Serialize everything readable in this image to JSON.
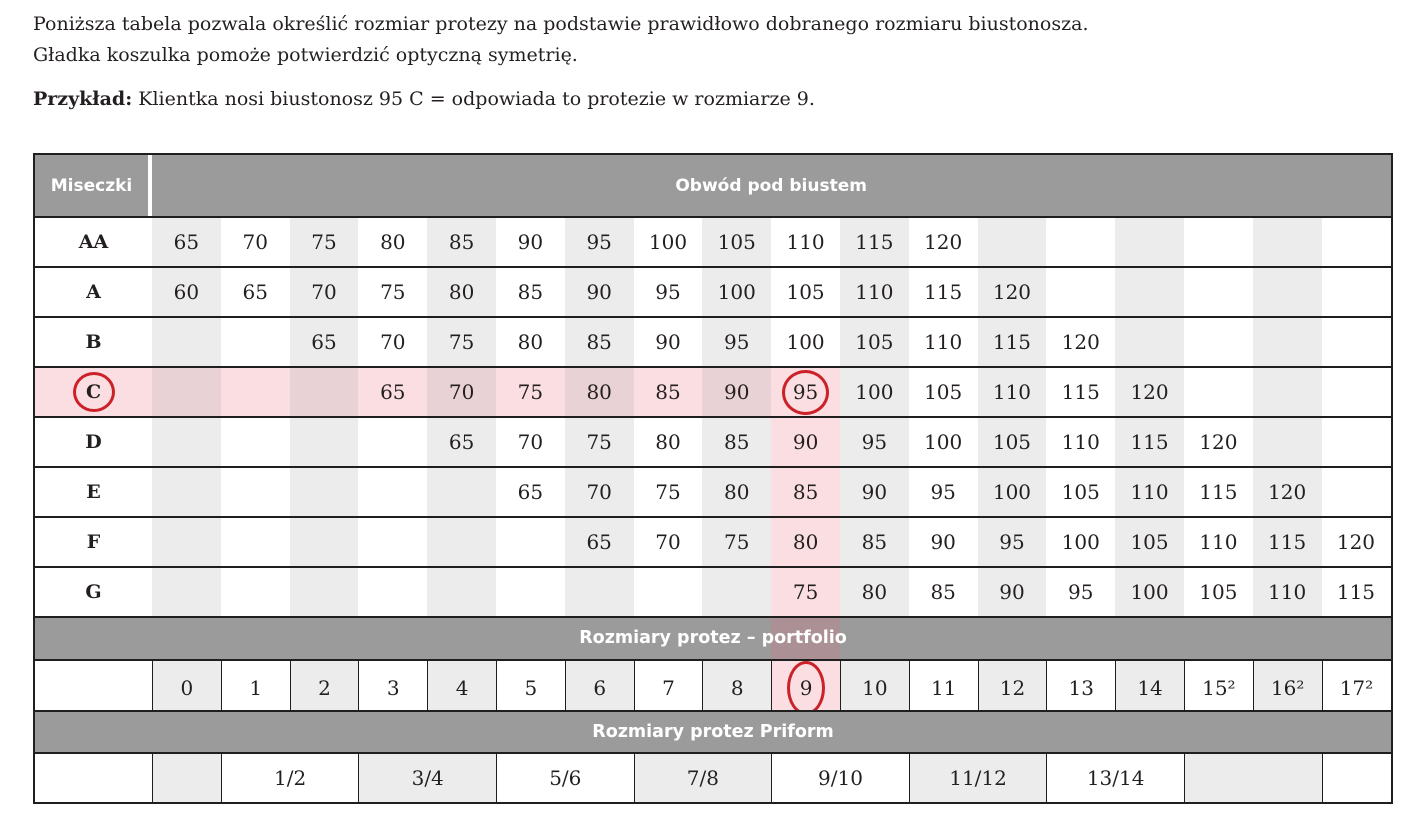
{
  "page": {
    "intro_line1": "Poniższa tabela pozwala określić rozmiar protezy na podstawie prawidłowo dobranego rozmiaru biustonosza.",
    "intro_line2": "Gładka koszulka pomoże potwierdzić optyczną symetrię.",
    "example_label": "Przykład:",
    "example_text": " Klientka nosi biustonosz 95 C = odpowiada to protezie w rozmiarze 9."
  },
  "table": {
    "num_columns": 18,
    "highlight_column_index": 9,
    "header": {
      "cups_label": "Miseczki",
      "band_label": "Obwód pod biustem"
    },
    "cup_rows": [
      {
        "label": "AA",
        "cells": [
          "65",
          "70",
          "75",
          "80",
          "85",
          "90",
          "95",
          "100",
          "105",
          "110",
          "115",
          "120",
          "",
          "",
          "",
          "",
          "",
          ""
        ]
      },
      {
        "label": "A",
        "cells": [
          "60",
          "65",
          "70",
          "75",
          "80",
          "85",
          "90",
          "95",
          "100",
          "105",
          "110",
          "115",
          "120",
          "",
          "",
          "",
          "",
          ""
        ]
      },
      {
        "label": "B",
        "cells": [
          "",
          "",
          "65",
          "70",
          "75",
          "80",
          "85",
          "90",
          "95",
          "100",
          "105",
          "110",
          "115",
          "120",
          "",
          "",
          "",
          ""
        ]
      },
      {
        "label": "C",
        "cells": [
          "",
          "",
          "",
          "65",
          "70",
          "75",
          "80",
          "85",
          "90",
          "95",
          "100",
          "105",
          "110",
          "115",
          "120",
          "",
          "",
          ""
        ],
        "row_pink": true,
        "label_circled": true,
        "circled_cell_index": 9
      },
      {
        "label": "D",
        "cells": [
          "",
          "",
          "",
          "",
          "65",
          "70",
          "75",
          "80",
          "85",
          "90",
          "95",
          "100",
          "105",
          "110",
          "115",
          "120",
          "",
          ""
        ],
        "col_pink": true
      },
      {
        "label": "E",
        "cells": [
          "",
          "",
          "",
          "",
          "",
          "65",
          "70",
          "75",
          "80",
          "85",
          "90",
          "95",
          "100",
          "105",
          "110",
          "115",
          "120",
          ""
        ],
        "col_pink": true
      },
      {
        "label": "F",
        "cells": [
          "",
          "",
          "",
          "",
          "",
          "",
          "65",
          "70",
          "75",
          "80",
          "85",
          "90",
          "95",
          "100",
          "105",
          "110",
          "115",
          "120"
        ],
        "col_pink": true
      },
      {
        "label": "G",
        "cells": [
          "",
          "",
          "",
          "",
          "",
          "",
          "",
          "",
          "",
          "75",
          "80",
          "85",
          "90",
          "95",
          "100",
          "105",
          "110",
          "115"
        ],
        "col_pink": true
      }
    ],
    "portfolio_band_label": "Rozmiary protez – portfolio",
    "portfolio_row": {
      "cells": [
        "0",
        "1",
        "2",
        "3",
        "4",
        "5",
        "6",
        "7",
        "8",
        "9",
        "10",
        "11",
        "12",
        "13",
        "14",
        "15²",
        "16²",
        "17²"
      ],
      "circled_cell_index": 9,
      "pink_cell_index": 9
    },
    "priform_band_label": "Rozmiary protez Priform",
    "priform_row": {
      "groups": [
        {
          "label": "",
          "span": 1,
          "shade": "gray"
        },
        {
          "label": "1/2",
          "span": 2,
          "shade": "white"
        },
        {
          "label": "3/4",
          "span": 2,
          "shade": "gray"
        },
        {
          "label": "5/6",
          "span": 2,
          "shade": "white"
        },
        {
          "label": "7/8",
          "span": 2,
          "shade": "gray"
        },
        {
          "label": "9/10",
          "span": 2,
          "shade": "white"
        },
        {
          "label": "11/12",
          "span": 2,
          "shade": "gray"
        },
        {
          "label": "13/14",
          "span": 2,
          "shade": "white"
        },
        {
          "label": "",
          "span": 2,
          "shade": "gray"
        },
        {
          "label": "",
          "span": 1,
          "shade": "white"
        }
      ]
    }
  },
  "colors": {
    "band_bg": "#9b9b9b",
    "band_text": "#ffffff",
    "cell_gray": "#ececec",
    "pink_light": "#fadee1",
    "pink_dark": "#e9d2d5",
    "band_pink_overlay": "#ab9195",
    "circle_red": "#cb2128",
    "text_dark": "#231f20",
    "border_dark": "#1f1f1f"
  }
}
